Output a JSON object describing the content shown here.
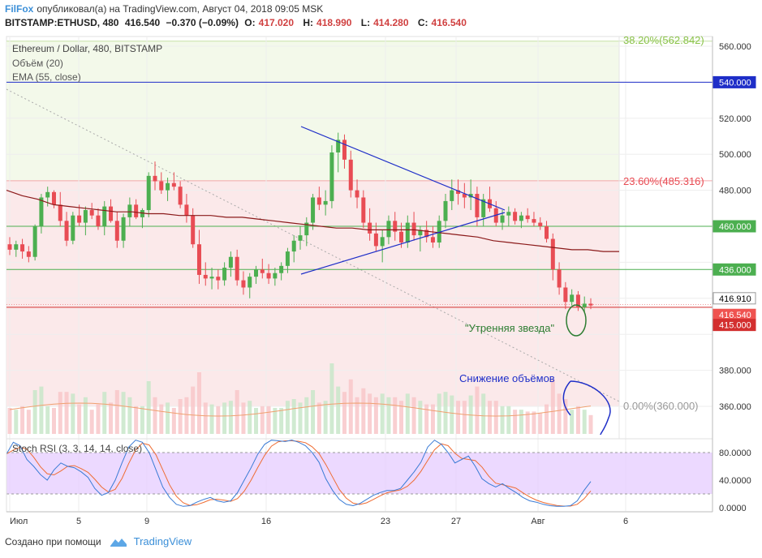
{
  "header": {
    "brand": "FilFox",
    "published": "опубликовал(а) на TradingView.com, Август 04, 2018 09:05 MSK",
    "symbol": "BITSTAMP:ETHUSD, 480",
    "last": "416.540",
    "change": "−0.370 (−0.09%)",
    "open_label": "O:",
    "open": "417.020",
    "high_label": "H:",
    "high": "418.990",
    "low_label": "L:",
    "low": "414.280",
    "close_label": "C:",
    "close": "416.540"
  },
  "legend": {
    "title": "Ethereum / Dollar, 480, BITSTAMP",
    "volume": "Объём (20)",
    "ema": "EMA (55, close)"
  },
  "annotations": {
    "morning_star": "\"Утренняя звезда\"",
    "volume_drop": "Снижение объёмов",
    "fib_382": "38.20%(562.842)",
    "fib_236": "23.60%(485.316)",
    "fib_0": "0.00%(360.000)"
  },
  "price_axis": {
    "ticks": [
      "560.000",
      "540.000",
      "520.000",
      "500.000",
      "480.000",
      "460.000",
      "436.000",
      "416.910",
      "416.540",
      "415.000",
      "380.000",
      "360.000"
    ],
    "badges": [
      {
        "value": "540.000",
        "bg": "#1e2ec8",
        "fg": "#ffffff"
      },
      {
        "value": "460.000",
        "bg": "#4caf50",
        "fg": "#ffffff"
      },
      {
        "value": "436.000",
        "bg": "#4caf50",
        "fg": "#ffffff"
      },
      {
        "value": "416.910",
        "bg": "#ffffff",
        "fg": "#000000"
      },
      {
        "value": "416.540",
        "bg": "#ef5350",
        "fg": "#ffffff"
      },
      {
        "value": "415.000",
        "bg": "#d32f2f",
        "fg": "#ffffff"
      }
    ]
  },
  "stoch": {
    "title": "Stoch RSI (3, 3, 14, 14, close)",
    "ticks": [
      "80.0000",
      "40.0000",
      "0.0000"
    ]
  },
  "time_axis": {
    "labels": [
      "Июл",
      "5",
      "9",
      "16",
      "23",
      "27",
      "Авг",
      "6"
    ]
  },
  "footer": {
    "created": "Создано при помощи",
    "tv": "TradingView"
  },
  "colors": {
    "bull": "#4caf50",
    "bear": "#e84c54",
    "ema": "#8b1a1a",
    "trend": "#1e2ec8",
    "fib_top_bg": "#f3f9ea",
    "fib_mid_bg": "#fbe9ea",
    "stoch_band": "#e6ccff",
    "stoch_k": "#3a7bd5",
    "stoch_d": "#ef6c33"
  },
  "chart_data": {
    "type": "candlestick",
    "title": "Ethereum / Dollar, 480, BITSTAMP",
    "x_labels": [
      "Июл",
      "5",
      "9",
      "16",
      "23",
      "27",
      "Авг",
      "6"
    ],
    "ylim": [
      340,
      565
    ],
    "candles": [
      [
        450,
        454,
        444,
        447
      ],
      [
        447,
        452,
        443,
        450
      ],
      [
        450,
        453,
        442,
        446
      ],
      [
        446,
        449,
        440,
        443
      ],
      [
        443,
        461,
        441,
        460
      ],
      [
        460,
        478,
        456,
        476
      ],
      [
        476,
        482,
        471,
        479
      ],
      [
        479,
        480,
        470,
        472
      ],
      [
        472,
        479,
        460,
        463
      ],
      [
        463,
        468,
        449,
        452
      ],
      [
        452,
        468,
        450,
        466
      ],
      [
        466,
        472,
        460,
        462
      ],
      [
        462,
        471,
        455,
        469
      ],
      [
        469,
        473,
        464,
        466
      ],
      [
        466,
        470,
        458,
        460
      ],
      [
        460,
        474,
        455,
        471
      ],
      [
        471,
        475,
        462,
        463
      ],
      [
        463,
        468,
        448,
        452
      ],
      [
        452,
        467,
        448,
        465
      ],
      [
        465,
        476,
        460,
        472
      ],
      [
        472,
        475,
        464,
        465
      ],
      [
        465,
        470,
        459,
        469
      ],
      [
        469,
        490,
        465,
        488
      ],
      [
        488,
        496,
        480,
        485
      ],
      [
        485,
        490,
        478,
        480
      ],
      [
        480,
        487,
        474,
        484
      ],
      [
        484,
        490,
        480,
        482
      ],
      [
        482,
        485,
        470,
        472
      ],
      [
        472,
        478,
        462,
        466
      ],
      [
        466,
        470,
        448,
        450
      ],
      [
        450,
        458,
        428,
        433
      ],
      [
        433,
        440,
        427,
        431
      ],
      [
        431,
        437,
        425,
        432
      ],
      [
        432,
        436,
        425,
        430
      ],
      [
        430,
        440,
        427,
        437
      ],
      [
        437,
        446,
        432,
        443
      ],
      [
        443,
        447,
        427,
        430
      ],
      [
        430,
        435,
        422,
        426
      ],
      [
        426,
        434,
        420,
        432
      ],
      [
        432,
        438,
        428,
        436
      ],
      [
        436,
        442,
        431,
        434
      ],
      [
        434,
        439,
        428,
        431
      ],
      [
        431,
        437,
        427,
        434
      ],
      [
        434,
        440,
        430,
        438
      ],
      [
        438,
        448,
        434,
        446
      ],
      [
        446,
        455,
        440,
        452
      ],
      [
        452,
        460,
        447,
        455
      ],
      [
        455,
        465,
        449,
        462
      ],
      [
        462,
        478,
        458,
        476
      ],
      [
        476,
        482,
        469,
        472
      ],
      [
        472,
        480,
        466,
        474
      ],
      [
        474,
        505,
        470,
        501
      ],
      [
        501,
        512,
        490,
        508
      ],
      [
        508,
        511,
        492,
        497
      ],
      [
        497,
        502,
        476,
        480
      ],
      [
        480,
        486,
        470,
        476
      ],
      [
        476,
        480,
        459,
        462
      ],
      [
        462,
        470,
        452,
        456
      ],
      [
        456,
        462,
        446,
        449
      ],
      [
        449,
        458,
        440,
        454
      ],
      [
        454,
        466,
        450,
        463
      ],
      [
        463,
        468,
        452,
        457
      ],
      [
        457,
        462,
        448,
        451
      ],
      [
        451,
        466,
        448,
        462
      ],
      [
        462,
        468,
        452,
        455
      ],
      [
        455,
        460,
        446,
        458
      ],
      [
        458,
        463,
        451,
        454
      ],
      [
        454,
        460,
        448,
        451
      ],
      [
        451,
        466,
        448,
        463
      ],
      [
        463,
        478,
        459,
        474
      ],
      [
        474,
        486,
        469,
        480
      ],
      [
        480,
        486,
        472,
        478
      ],
      [
        478,
        484,
        470,
        476
      ],
      [
        476,
        486,
        469,
        478
      ],
      [
        478,
        482,
        460,
        465
      ],
      [
        465,
        478,
        460,
        475
      ],
      [
        475,
        482,
        468,
        470
      ],
      [
        470,
        474,
        460,
        462
      ],
      [
        462,
        469,
        458,
        466
      ],
      [
        466,
        471,
        460,
        468
      ],
      [
        468,
        470,
        461,
        463
      ],
      [
        463,
        468,
        459,
        466
      ],
      [
        466,
        470,
        462,
        464
      ],
      [
        464,
        468,
        460,
        462
      ],
      [
        462,
        465,
        458,
        460
      ],
      [
        460,
        463,
        451,
        453
      ],
      [
        453,
        456,
        430,
        436
      ],
      [
        436,
        440,
        422,
        426
      ],
      [
        426,
        429,
        414,
        418
      ],
      [
        418,
        425,
        416,
        422
      ],
      [
        422,
        424,
        413,
        415
      ],
      [
        415,
        421,
        412,
        417
      ],
      [
        417,
        420,
        414,
        416
      ]
    ],
    "ema55_approx": [
      480,
      477,
      475,
      472,
      471,
      470,
      469,
      468,
      468,
      467,
      467,
      466,
      466,
      466,
      465,
      465,
      464,
      463,
      462,
      461,
      460,
      459,
      459,
      458,
      458,
      458,
      458,
      457,
      456,
      455,
      454,
      452,
      451,
      450,
      449,
      448,
      447,
      447,
      446,
      446
    ]
  }
}
